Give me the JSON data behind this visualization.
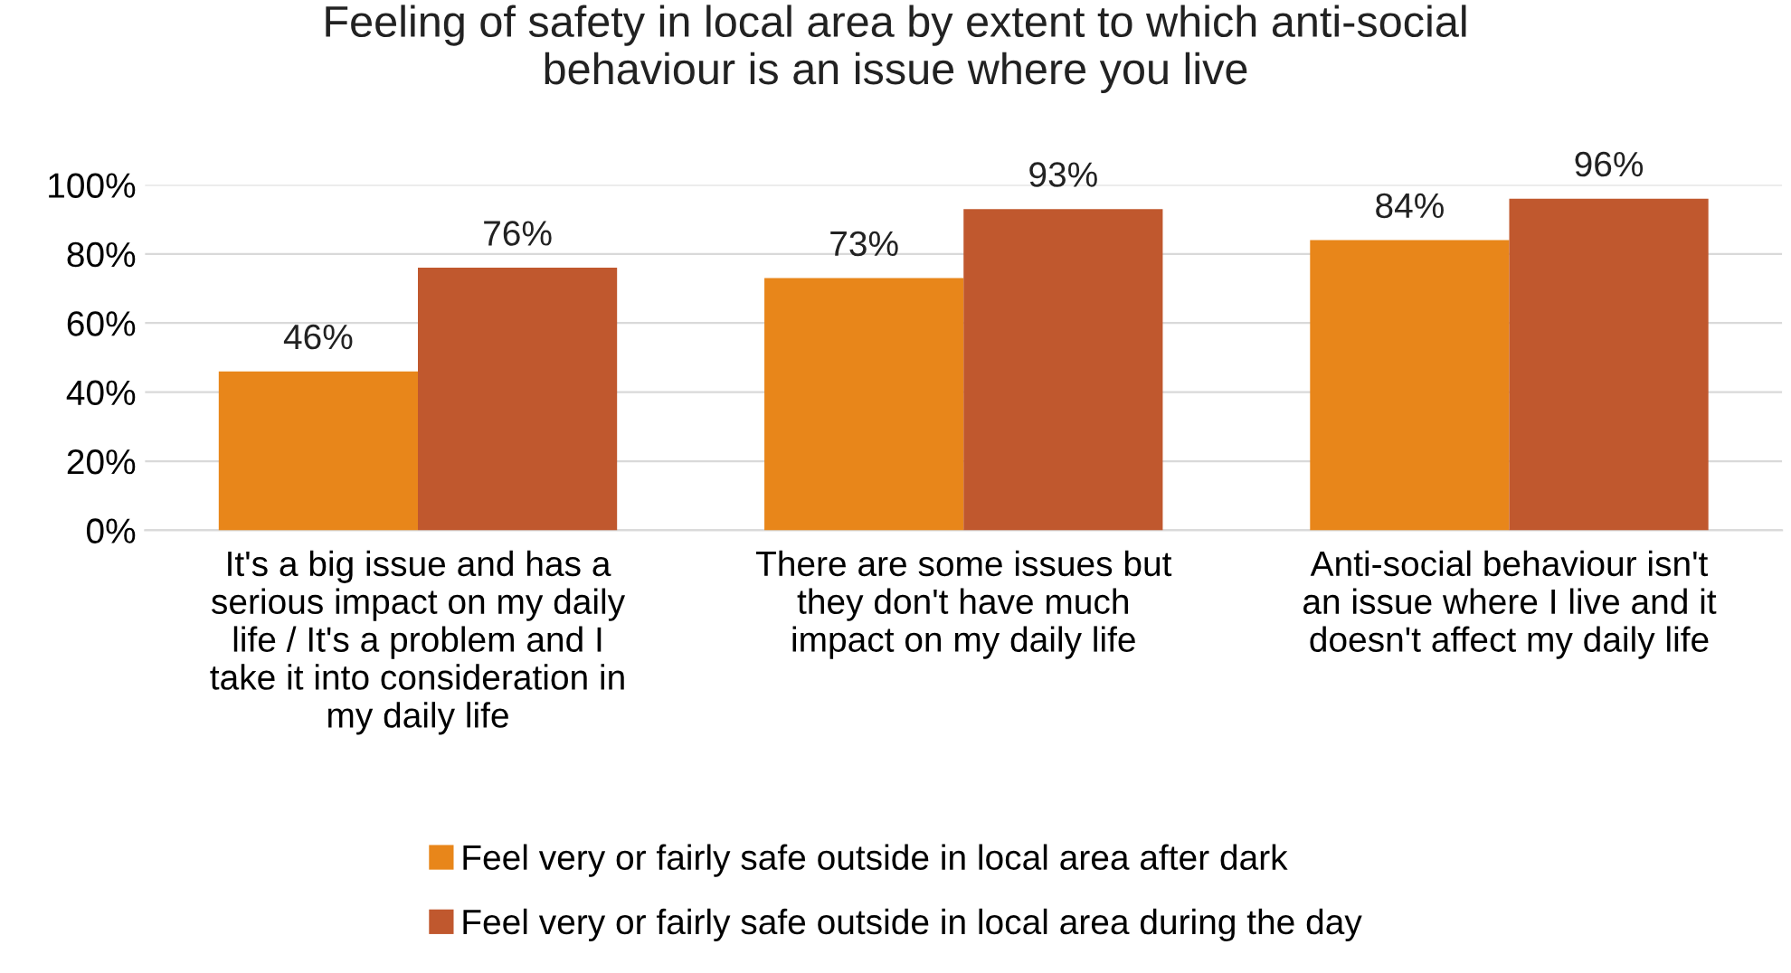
{
  "chart_data": {
    "type": "bar",
    "title": "Feeling of safety in local area by extent to which anti-social\nbehaviour is an issue where you live",
    "categories": [
      "It's a big issue and has a\nserious impact on my daily\nlife / It's a problem and I\ntake it into consideration in\nmy daily life",
      "There are some issues but\nthey don't have much\nimpact on my daily life",
      "Anti-social behaviour isn't\nan issue where I live and it\ndoesn't affect my daily life"
    ],
    "series": [
      {
        "name": "Feel very or fairly safe outside in local area after dark",
        "color": "#e8861a",
        "values": [
          46,
          73,
          84
        ],
        "value_labels": [
          "46%",
          "73%",
          "84%"
        ]
      },
      {
        "name": "Feel very or fairly safe outside in local area during the day",
        "color": "#c0582e",
        "values": [
          76,
          93,
          96
        ],
        "value_labels": [
          "76%",
          "93%",
          "96%"
        ]
      }
    ],
    "ylim": [
      0,
      100
    ],
    "yticks": [
      {
        "value": 0,
        "label": "0%"
      },
      {
        "value": 20,
        "label": "20%"
      },
      {
        "value": 40,
        "label": "40%"
      },
      {
        "value": 60,
        "label": "60%"
      },
      {
        "value": 80,
        "label": "80%"
      },
      {
        "value": 100,
        "label": "100%"
      }
    ],
    "grid": "y",
    "legend": "bottom"
  }
}
